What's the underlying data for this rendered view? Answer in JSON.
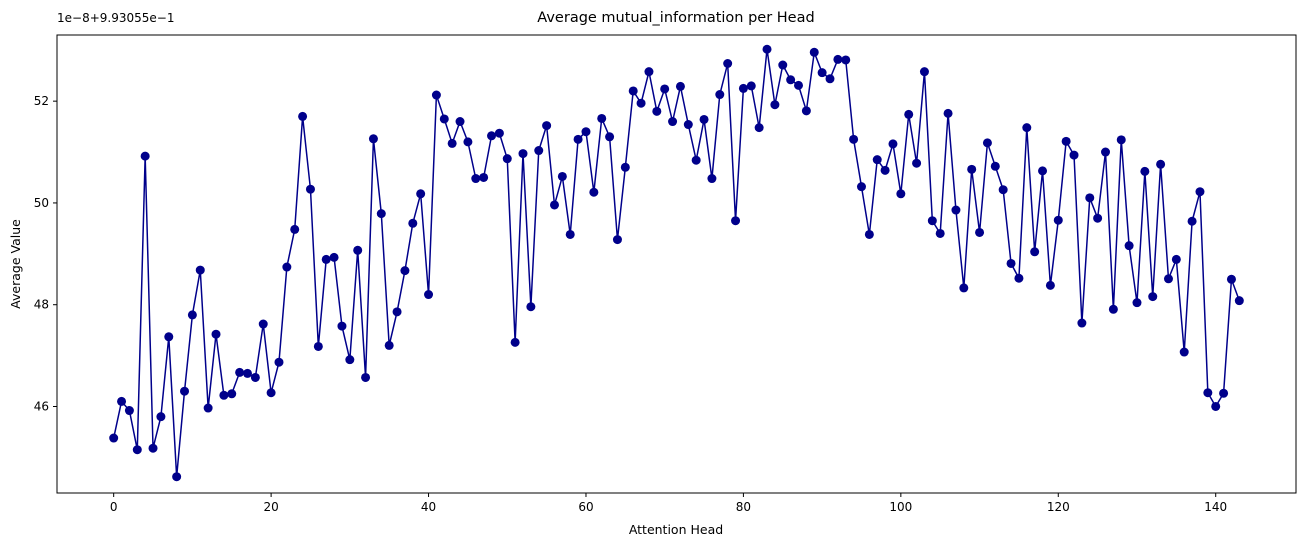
{
  "chart_data": {
    "type": "line",
    "title": "Average mutual_information per Head",
    "xlabel": "Attention Head",
    "ylabel": "Average Value",
    "y_offset_label": "1e−8+9.93055e−1",
    "xlim": [
      -7.2,
      150.2
    ],
    "ylim": [
      44.3,
      53.3
    ],
    "xticks": [
      0,
      20,
      40,
      60,
      80,
      100,
      120,
      140
    ],
    "yticks": [
      46,
      48,
      50,
      52
    ],
    "grid": false,
    "marker": "circle",
    "line_color": "#00008b",
    "series": [
      {
        "values": [
          45.38,
          46.1,
          45.92,
          45.15,
          50.92,
          45.18,
          45.8,
          47.37,
          44.62,
          46.3,
          47.8,
          48.68,
          45.97,
          47.42,
          46.22,
          46.25,
          46.67,
          46.65,
          46.57,
          47.62,
          46.27,
          46.87,
          48.74,
          49.48,
          51.7,
          50.27,
          47.18,
          48.89,
          48.93,
          47.58,
          46.92,
          49.07,
          46.57,
          51.26,
          49.79,
          47.2,
          47.86,
          48.67,
          49.6,
          50.18,
          48.2,
          52.12,
          51.65,
          51.17,
          51.6,
          51.2,
          50.48,
          50.5,
          51.32,
          51.37,
          50.87,
          47.26,
          50.97,
          47.96,
          51.03,
          51.52,
          49.96,
          50.52,
          49.38,
          51.25,
          51.4,
          50.21,
          51.66,
          51.3,
          49.28,
          50.7,
          52.2,
          51.96,
          52.58,
          51.8,
          52.24,
          51.6,
          52.29,
          51.54,
          50.84,
          51.64,
          50.48,
          52.13,
          52.74,
          49.65,
          52.25,
          52.3,
          51.48,
          53.02,
          51.93,
          52.71,
          52.42,
          52.31,
          51.81,
          52.96,
          52.56,
          52.44,
          52.82,
          52.81,
          51.25,
          50.32,
          49.38,
          50.85,
          50.64,
          51.16,
          50.18,
          51.74,
          50.78,
          52.58,
          49.65,
          49.4,
          51.76,
          49.86,
          48.33,
          50.66,
          49.42,
          51.18,
          50.72,
          50.26,
          48.81,
          48.52,
          51.48,
          49.04,
          50.63,
          48.38,
          49.66,
          51.21,
          50.94,
          47.64,
          50.1,
          49.7,
          51.0,
          47.91,
          51.24,
          49.16,
          48.04,
          50.62,
          48.16,
          50.76,
          48.51,
          48.89,
          47.07,
          49.64,
          50.22,
          46.27,
          46.0,
          46.26,
          48.5,
          48.08
        ]
      }
    ]
  }
}
